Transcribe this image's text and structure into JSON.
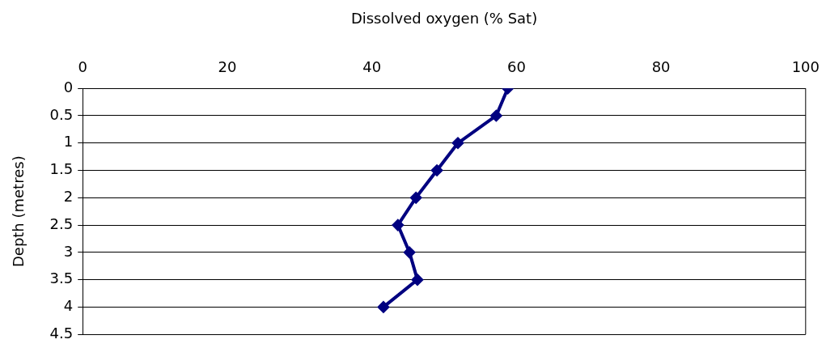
{
  "chart_data": {
    "type": "line",
    "xlabel": "Dissolved oxygen (% Sat)",
    "ylabel": "Depth (metres)",
    "x": [
      58.8,
      57.2,
      51.9,
      49.0,
      46.1,
      43.6,
      45.2,
      46.3,
      41.6
    ],
    "values": [
      0,
      0.5,
      1,
      1.5,
      2,
      2.5,
      3,
      3.5,
      4
    ],
    "color": "#000080",
    "marker": "diamond",
    "line_style": "solid",
    "xlim": [
      0,
      100
    ],
    "xticks": [
      0,
      20,
      40,
      60,
      80,
      100
    ],
    "ylim": [
      4.5,
      0
    ],
    "yticks": [
      0,
      0.5,
      1,
      1.5,
      2,
      2.5,
      3,
      3.5,
      4,
      4.5
    ],
    "grid": "y",
    "legend": false
  }
}
